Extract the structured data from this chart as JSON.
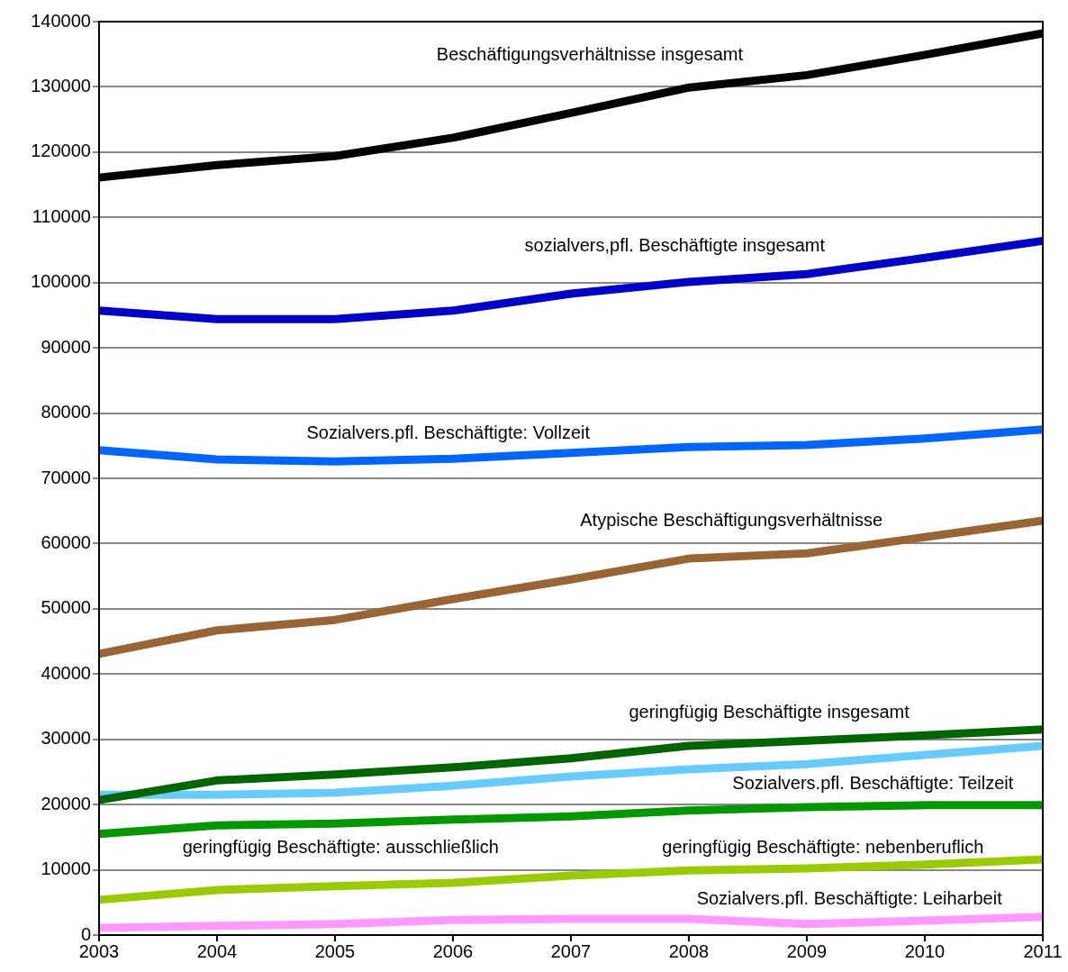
{
  "chart_data": {
    "type": "line",
    "categories": [
      "2003",
      "2004",
      "2005",
      "2006",
      "2007",
      "2008",
      "2009",
      "2010",
      "2011"
    ],
    "ylim": [
      0,
      140000
    ],
    "yticks": [
      0,
      10000,
      20000,
      30000,
      40000,
      50000,
      60000,
      70000,
      80000,
      90000,
      100000,
      110000,
      120000,
      130000,
      140000
    ],
    "grid": "y",
    "legend": false,
    "marker": "none",
    "line_style": "solid",
    "series": [
      {
        "name": "Beschäftigungsverhältnisse insgesamt",
        "color": "#000000",
        "values": [
          116100,
          118000,
          119400,
          122200,
          126000,
          129900,
          131800,
          134900,
          138200
        ]
      },
      {
        "name": "sozialvers,pfl. Beschäftigte insgesamt",
        "color": "#0000cc",
        "values": [
          95700,
          94400,
          94400,
          95700,
          98300,
          100100,
          101300,
          103800,
          106400
        ]
      },
      {
        "name": "Sozialvers.pfl. Beschäftigte: Vollzeit",
        "color": "#0066ff",
        "values": [
          74300,
          72900,
          72600,
          73000,
          73900,
          74800,
          75100,
          76100,
          77500
        ]
      },
      {
        "name": "Atypische Beschäftigungsverhältnisse",
        "color": "#996633",
        "values": [
          43100,
          46700,
          48300,
          51500,
          54500,
          57700,
          58500,
          61000,
          63500
        ]
      },
      {
        "name": "geringfügig Beschäftigte insgesamt",
        "color": "#006600",
        "values": [
          20700,
          23700,
          24600,
          25700,
          27100,
          29000,
          29800,
          30600,
          31500
        ]
      },
      {
        "name": "Sozialvers.pfl. Beschäftigte: Teilzeit",
        "color": "#66ccff",
        "values": [
          21500,
          21500,
          21800,
          22900,
          24300,
          25400,
          26200,
          27600,
          29000
        ]
      },
      {
        "name": "geringfügig Beschäftigte: ausschließlich",
        "color": "#009900",
        "values": [
          15500,
          16800,
          17100,
          17700,
          18200,
          19100,
          19600,
          19900,
          19900
        ]
      },
      {
        "name": "geringfügig Beschäftigte: nebenberuflich",
        "color": "#99cc00",
        "values": [
          5400,
          6900,
          7500,
          8000,
          9100,
          9900,
          10200,
          10800,
          11600
        ]
      },
      {
        "name": "Sozialvers.pfl. Beschäftigte: Leiharbeit",
        "color": "#ff99ff",
        "values": [
          1100,
          1400,
          1700,
          2300,
          2500,
          2500,
          1700,
          2200,
          2800
        ]
      }
    ]
  }
}
